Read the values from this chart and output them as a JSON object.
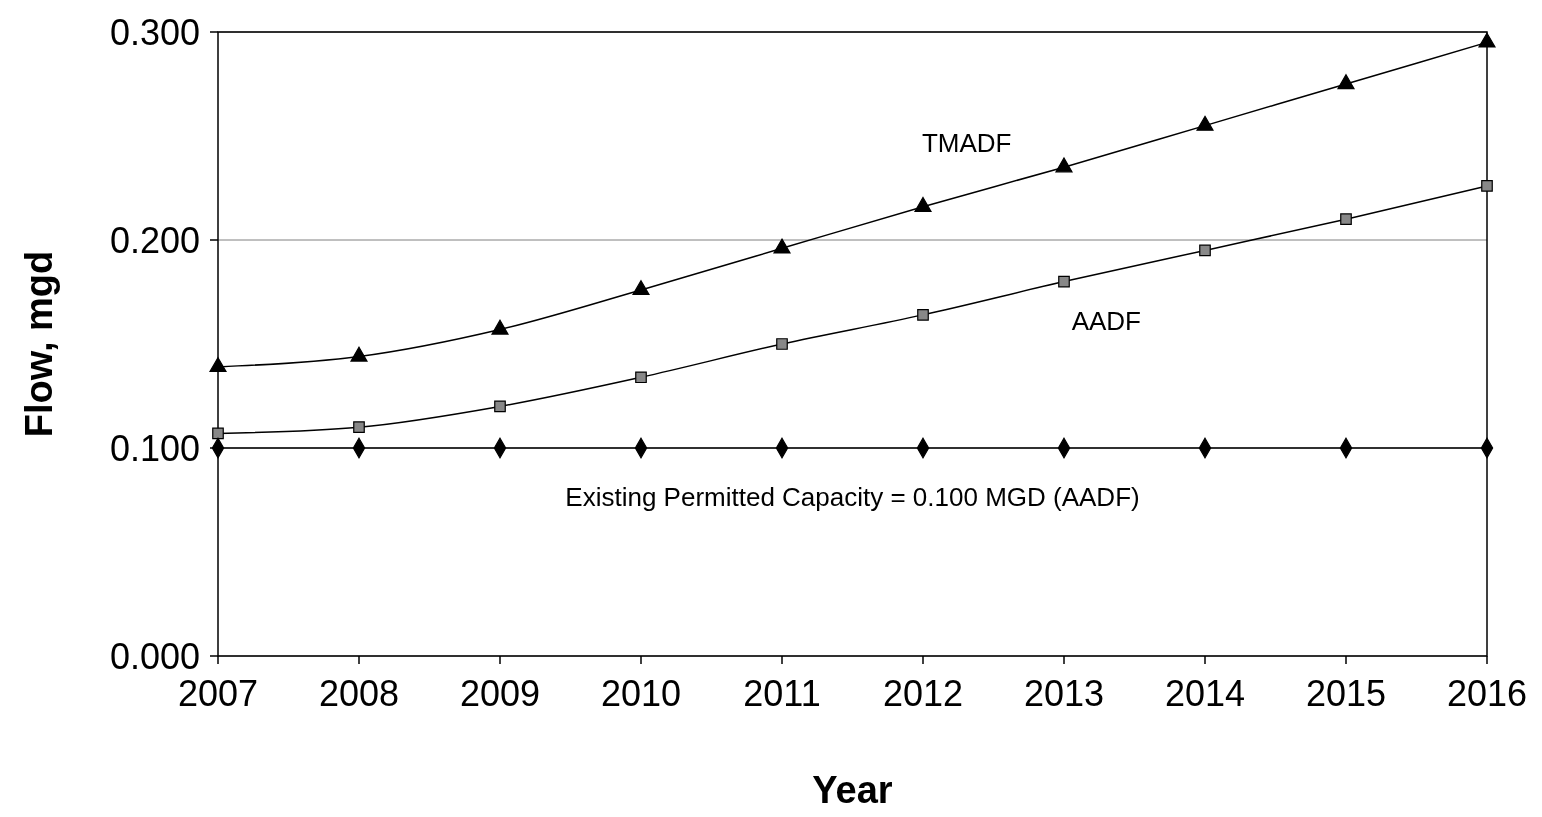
{
  "chart_data": {
    "type": "line",
    "xlabel": "Year",
    "ylabel": "Flow, mgd",
    "categories": [
      "2007",
      "2008",
      "2009",
      "2010",
      "2011",
      "2012",
      "2013",
      "2014",
      "2015",
      "2016"
    ],
    "series": [
      {
        "name": "TMADF",
        "color": "#000000",
        "marker": "triangle",
        "values": [
          0.139,
          0.144,
          0.157,
          0.176,
          0.196,
          0.216,
          0.235,
          0.255,
          0.275,
          0.295
        ]
      },
      {
        "name": "AADF",
        "color": "#000000",
        "marker": "square",
        "values": [
          0.107,
          0.11,
          0.12,
          0.134,
          0.15,
          0.164,
          0.18,
          0.195,
          0.21,
          0.226
        ]
      },
      {
        "name": "Existing Permitted Capacity = 0.100 MGD (AADF)",
        "color": "#000000",
        "marker": "diamond",
        "values": [
          0.1,
          0.1,
          0.1,
          0.1,
          0.1,
          0.1,
          0.1,
          0.1,
          0.1,
          0.1
        ]
      }
    ],
    "ylim": [
      0,
      0.3
    ],
    "yticks": [
      {
        "value": 0,
        "label": "0.000"
      },
      {
        "value": 0.1,
        "label": "0.100"
      },
      {
        "value": 0.2,
        "label": "0.200"
      },
      {
        "value": 0.3,
        "label": "0.300"
      }
    ],
    "grid": "y"
  }
}
